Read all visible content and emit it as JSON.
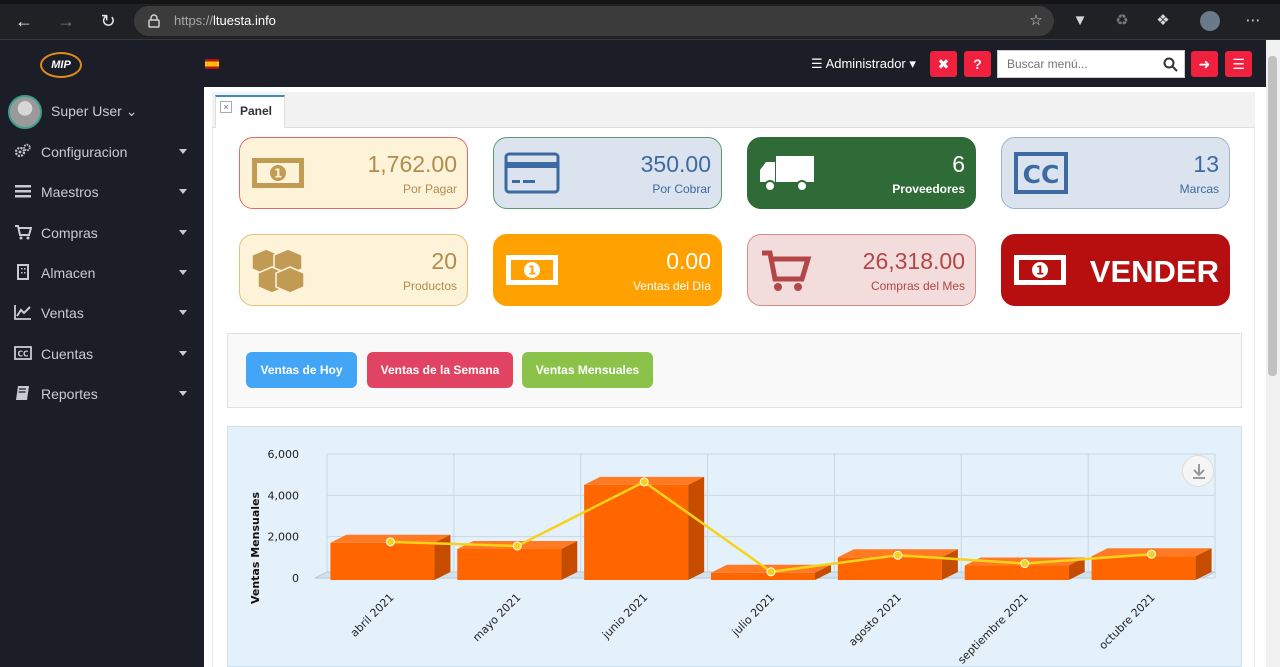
{
  "browser": {
    "url_protocol": "https://",
    "url_host": "ltuesta.info"
  },
  "topbar": {
    "admin_label": "Administrador",
    "search_placeholder": "Buscar menú...",
    "colors": {
      "accent_red": "#f0203f",
      "bar_bg": "#1b1e26"
    }
  },
  "sidebar": {
    "user": "Super User",
    "items": [
      {
        "label": "Configuracion",
        "icon": "cogs-icon"
      },
      {
        "label": "Maestros",
        "icon": "list-icon"
      },
      {
        "label": "Compras",
        "icon": "cart-icon"
      },
      {
        "label": "Almacen",
        "icon": "building-icon"
      },
      {
        "label": "Ventas",
        "icon": "line-chart-icon"
      },
      {
        "label": "Cuentas",
        "icon": "cc-icon"
      },
      {
        "label": "Reportes",
        "icon": "book-icon"
      }
    ]
  },
  "tabs": {
    "panel": "Panel"
  },
  "cards": [
    {
      "value": "1,762.00",
      "label": "Por Pagar",
      "icon": "money-icon"
    },
    {
      "value": "350.00",
      "label": "Por Cobrar",
      "icon": "credit-card-icon"
    },
    {
      "value": "6",
      "label": "Proveedores",
      "icon": "truck-icon"
    },
    {
      "value": "13",
      "label": "Marcas",
      "icon": "cc-icon"
    },
    {
      "value": "20",
      "label": "Productos",
      "icon": "cubes-icon"
    },
    {
      "value": "0.00",
      "label": "Ventas del Día",
      "icon": "money-icon"
    },
    {
      "value": "26,318.00",
      "label": "Compras del Mes",
      "icon": "cart-icon"
    },
    {
      "value": "VENDER",
      "label": "",
      "icon": "money-icon"
    }
  ],
  "buttons": {
    "today": "Ventas de Hoy",
    "week": "Ventas de la Semana",
    "month": "Ventas Mensuales"
  },
  "chart_data": {
    "type": "bar",
    "ylabel": "Ventas Mensuales",
    "categories": [
      "abril 2021",
      "mayo 2021",
      "junio 2021",
      "julio 2021",
      "agosto 2021",
      "septiembre 2021",
      "octubre 2021"
    ],
    "series": [
      {
        "type": "bar",
        "values": [
          1800,
          1500,
          4600,
          350,
          1100,
          700,
          1150
        ],
        "color": "#ff6600"
      },
      {
        "type": "line",
        "values": [
          1750,
          1550,
          4650,
          300,
          1100,
          700,
          1150
        ],
        "color": "#f5d31a"
      }
    ],
    "ylim": [
      0,
      6000
    ],
    "yticks": [
      "0",
      "2,000",
      "4,000",
      "6,000"
    ],
    "grid": true
  }
}
